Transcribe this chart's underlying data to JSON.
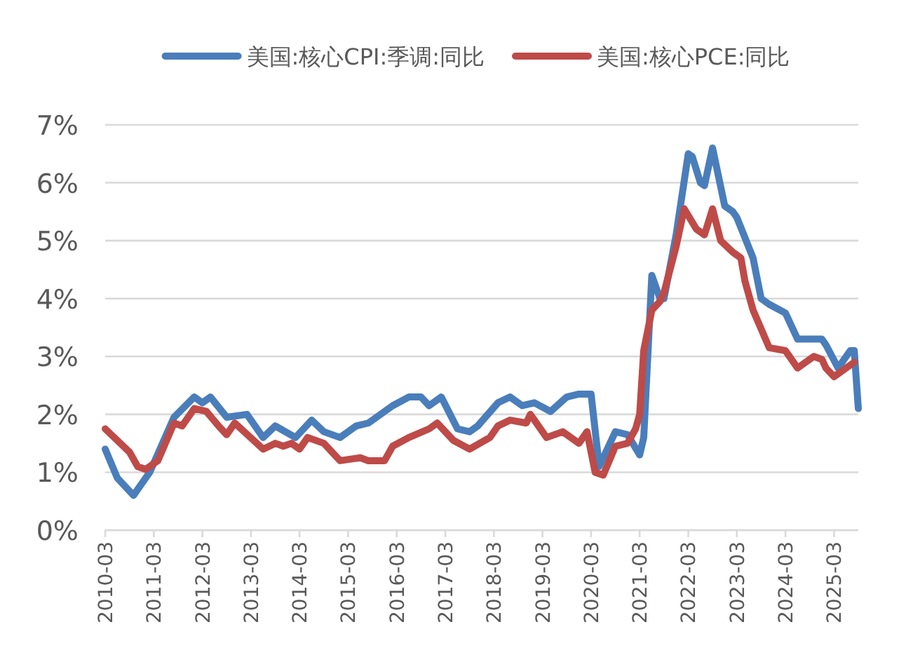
{
  "chart_data": {
    "type": "line",
    "legend": "top",
    "grid": "y",
    "xlim": [
      "2010-03",
      "2025-09"
    ],
    "xticks": [
      "2010-03",
      "2011-03",
      "2012-03",
      "2013-03",
      "2014-03",
      "2015-03",
      "2016-03",
      "2017-03",
      "2018-03",
      "2019-03",
      "2020-03",
      "2021-03",
      "2022-03",
      "2023-03",
      "2024-03",
      "2025-03"
    ],
    "ylim": [
      0,
      7
    ],
    "yticks": [
      {
        "value": 0,
        "label": "0%"
      },
      {
        "value": 1,
        "label": "1%"
      },
      {
        "value": 2,
        "label": "2%"
      },
      {
        "value": 3,
        "label": "3%"
      },
      {
        "value": 4,
        "label": "4%"
      },
      {
        "value": 5,
        "label": "5%"
      },
      {
        "value": 6,
        "label": "6%"
      },
      {
        "value": 7,
        "label": "7%"
      }
    ],
    "series": [
      {
        "name": "美国:核心CPI:季调:同比",
        "color": "#4a7ebb",
        "x": [
          "2010-03",
          "2010-06",
          "2010-10",
          "2011-02",
          "2011-08",
          "2012-01",
          "2012-03",
          "2012-05",
          "2012-09",
          "2013-02",
          "2013-06",
          "2013-09",
          "2014-02",
          "2014-06",
          "2014-09",
          "2015-01",
          "2015-05",
          "2015-08",
          "2016-02",
          "2016-06",
          "2016-09",
          "2016-11",
          "2017-02",
          "2017-06",
          "2017-09",
          "2017-11",
          "2018-04",
          "2018-07",
          "2018-10",
          "2019-01",
          "2019-05",
          "2019-09",
          "2019-12",
          "2020-03",
          "2020-05",
          "2020-09",
          "2020-12",
          "2021-03",
          "2021-04",
          "2021-05",
          "2021-06",
          "2021-08",
          "2021-09",
          "2021-12",
          "2022-03",
          "2022-04",
          "2022-06",
          "2022-07",
          "2022-09",
          "2022-12",
          "2023-02",
          "2023-03",
          "2023-07",
          "2023-09",
          "2023-11",
          "2024-03",
          "2024-06",
          "2024-12",
          "2025-01",
          "2025-04",
          "2025-07",
          "2025-08",
          "2025-09"
        ],
        "values": [
          1.4,
          0.9,
          0.6,
          1.0,
          1.95,
          2.3,
          2.2,
          2.3,
          1.95,
          2.0,
          1.6,
          1.8,
          1.6,
          1.9,
          1.7,
          1.6,
          1.8,
          1.85,
          2.15,
          2.3,
          2.3,
          2.15,
          2.3,
          1.75,
          1.7,
          1.8,
          2.2,
          2.3,
          2.15,
          2.2,
          2.05,
          2.3,
          2.35,
          2.35,
          1.1,
          1.7,
          1.65,
          1.3,
          1.6,
          3.0,
          4.4,
          4.0,
          4.0,
          5.1,
          6.5,
          6.45,
          6.0,
          5.95,
          6.6,
          5.6,
          5.5,
          5.4,
          4.7,
          4.0,
          3.9,
          3.75,
          3.3,
          3.3,
          3.2,
          2.8,
          3.1,
          3.1,
          2.1
        ]
      },
      {
        "name": "美国:核心PCE:同比",
        "color": "#be4b48",
        "x": [
          "2010-03",
          "2010-09",
          "2010-11",
          "2011-01",
          "2011-04",
          "2011-08",
          "2011-10",
          "2012-01",
          "2012-04",
          "2012-07",
          "2012-09",
          "2012-11",
          "2013-06",
          "2013-09",
          "2013-11",
          "2014-01",
          "2014-03",
          "2014-05",
          "2014-09",
          "2015-01",
          "2015-06",
          "2015-08",
          "2015-12",
          "2016-02",
          "2016-06",
          "2016-11",
          "2017-01",
          "2017-05",
          "2017-09",
          "2018-02",
          "2018-04",
          "2018-07",
          "2018-11",
          "2018-12",
          "2019-04",
          "2019-08",
          "2019-12",
          "2020-02",
          "2020-04",
          "2020-06",
          "2020-09",
          "2020-12",
          "2021-02",
          "2021-03",
          "2021-04",
          "2021-06",
          "2021-08",
          "2021-09",
          "2021-12",
          "2022-02",
          "2022-05",
          "2022-07",
          "2022-09",
          "2022-11",
          "2023-02",
          "2023-04",
          "2023-05",
          "2023-07",
          "2023-11",
          "2024-03",
          "2024-06",
          "2024-10",
          "2024-12",
          "2025-01",
          "2025-03",
          "2025-06",
          "2025-08"
        ],
        "values": [
          1.75,
          1.35,
          1.1,
          1.05,
          1.2,
          1.85,
          1.8,
          2.1,
          2.05,
          1.8,
          1.65,
          1.85,
          1.4,
          1.5,
          1.45,
          1.5,
          1.4,
          1.6,
          1.5,
          1.2,
          1.25,
          1.2,
          1.2,
          1.45,
          1.6,
          1.75,
          1.85,
          1.55,
          1.4,
          1.6,
          1.8,
          1.9,
          1.85,
          2.0,
          1.6,
          1.7,
          1.5,
          1.7,
          1.0,
          0.95,
          1.45,
          1.5,
          1.75,
          2.0,
          3.1,
          3.8,
          3.95,
          4.1,
          4.9,
          5.55,
          5.2,
          5.1,
          5.55,
          5.0,
          4.8,
          4.7,
          4.3,
          3.8,
          3.15,
          3.1,
          2.8,
          3.0,
          2.95,
          2.8,
          2.65,
          2.8,
          2.9
        ]
      }
    ]
  }
}
